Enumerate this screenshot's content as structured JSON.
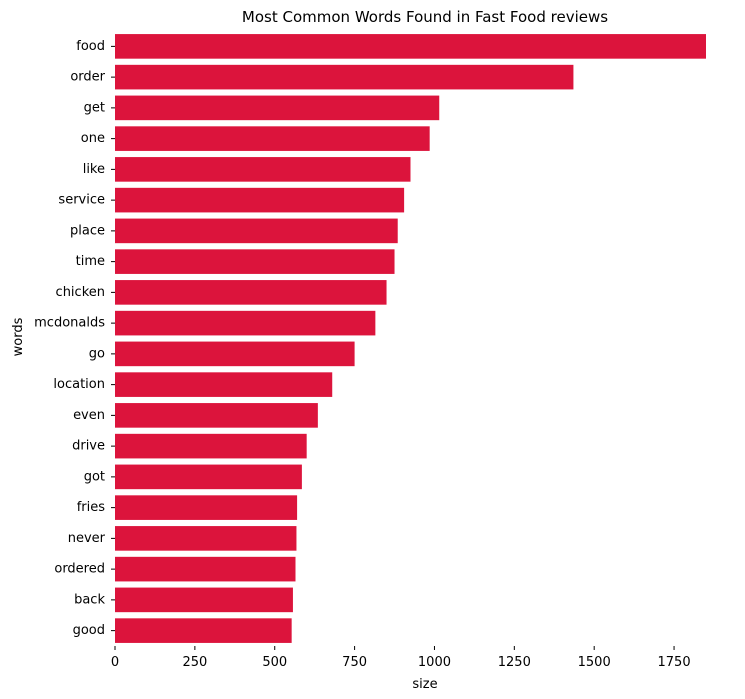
{
  "chart_data": {
    "type": "bar",
    "orientation": "horizontal",
    "title": "Most Common Words Found in Fast Food reviews",
    "xlabel": "size",
    "ylabel": "words",
    "xlim": [
      0,
      1850
    ],
    "xticks": [
      0,
      250,
      500,
      750,
      1000,
      1250,
      1500,
      1750
    ],
    "grid": false,
    "legend": "none",
    "bar_color": "#DC143C",
    "categories": [
      "food",
      "order",
      "get",
      "one",
      "like",
      "service",
      "place",
      "time",
      "chicken",
      "mcdonalds",
      "go",
      "location",
      "even",
      "drive",
      "got",
      "fries",
      "never",
      "ordered",
      "back",
      "good"
    ],
    "values": [
      1850,
      1435,
      1015,
      985,
      925,
      905,
      885,
      875,
      850,
      815,
      750,
      680,
      635,
      600,
      585,
      570,
      568,
      565,
      557,
      553
    ]
  }
}
